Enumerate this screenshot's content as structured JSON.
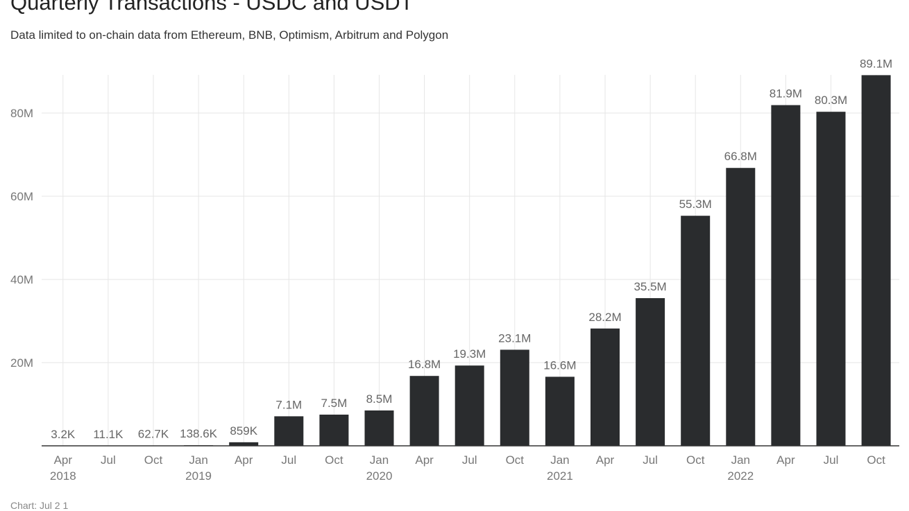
{
  "chart_data": {
    "type": "bar",
    "title": "Quarterly Transactions - USDC and USDT",
    "subtitle": "Data limited to on-chain data from Ethereum, BNB, Optimism, Arbitrum and Polygon",
    "categories": [
      "Apr 2018",
      "Jul 2018",
      "Oct 2018",
      "Jan 2019",
      "Apr 2019",
      "Jul 2019",
      "Oct 2019",
      "Jan 2020",
      "Apr 2020",
      "Jul 2020",
      "Oct 2020",
      "Jan 2021",
      "Apr 2021",
      "Jul 2021",
      "Oct 2021",
      "Jan 2022",
      "Apr 2022",
      "Jul 2022",
      "Oct 2022"
    ],
    "x_tick_labels": [
      {
        "month": "Apr",
        "year": "2018"
      },
      {
        "month": "Jul",
        "year": ""
      },
      {
        "month": "Oct",
        "year": ""
      },
      {
        "month": "Jan",
        "year": "2019"
      },
      {
        "month": "Apr",
        "year": ""
      },
      {
        "month": "Jul",
        "year": ""
      },
      {
        "month": "Oct",
        "year": ""
      },
      {
        "month": "Jan",
        "year": "2020"
      },
      {
        "month": "Apr",
        "year": ""
      },
      {
        "month": "Jul",
        "year": ""
      },
      {
        "month": "Oct",
        "year": ""
      },
      {
        "month": "Jan",
        "year": "2021"
      },
      {
        "month": "Apr",
        "year": ""
      },
      {
        "month": "Jul",
        "year": ""
      },
      {
        "month": "Oct",
        "year": ""
      },
      {
        "month": "Jan",
        "year": "2022"
      },
      {
        "month": "Apr",
        "year": ""
      },
      {
        "month": "Jul",
        "year": ""
      },
      {
        "month": "Oct",
        "year": ""
      }
    ],
    "values": [
      3200,
      11100,
      62700,
      138600,
      859000,
      7100000,
      7500000,
      8500000,
      16800000,
      19300000,
      23100000,
      16600000,
      28200000,
      35500000,
      55300000,
      66800000,
      81900000,
      80300000,
      89100000
    ],
    "data_labels": [
      "3.2K",
      "11.1K",
      "62.7K",
      "138.6K",
      "859K",
      "7.1M",
      "7.5M",
      "8.5M",
      "16.8M",
      "19.3M",
      "23.1M",
      "16.6M",
      "28.2M",
      "35.5M",
      "55.3M",
      "66.8M",
      "81.9M",
      "80.3M",
      "89.1M"
    ],
    "y_ticks": [
      {
        "value": 20000000,
        "label": "20M"
      },
      {
        "value": 40000000,
        "label": "40M"
      },
      {
        "value": 60000000,
        "label": "60M"
      },
      {
        "value": 80000000,
        "label": "80M"
      }
    ],
    "xlabel": "",
    "ylabel": "",
    "ylim": [
      0,
      89100000
    ],
    "grid": true,
    "legend": "none",
    "colors": {
      "bar": "#2a2c2e",
      "grid": "#e6e6e6",
      "axis": "#333333"
    }
  },
  "footer": "Chart: Jul 2 1"
}
